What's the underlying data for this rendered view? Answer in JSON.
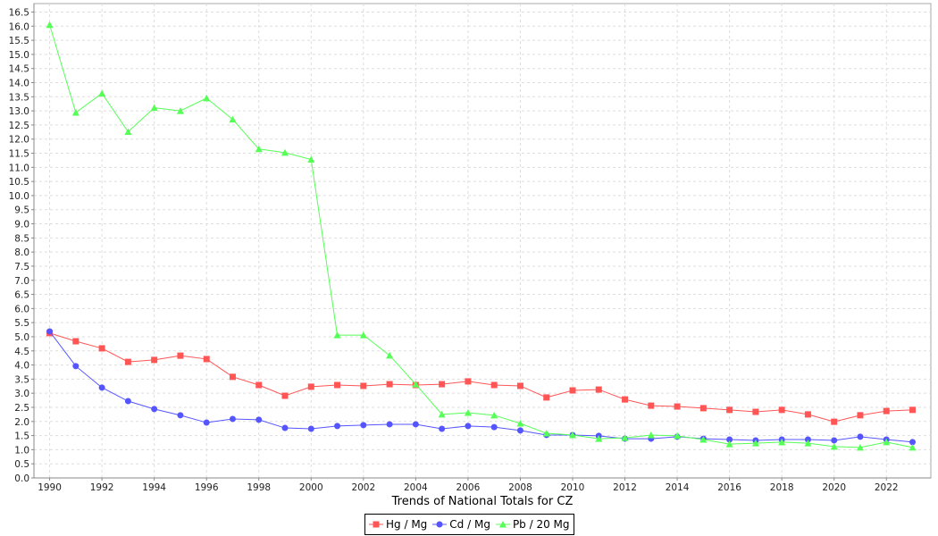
{
  "chart_data": {
    "type": "line",
    "title": "",
    "xlabel": "Trends of National Totals for CZ",
    "ylabel": "",
    "xlim": [
      1989.4,
      2023.7
    ],
    "ylim": [
      0,
      16.8
    ],
    "grid": true,
    "legend_position": "bottom",
    "y_ticks": [
      "0.0",
      "0.5",
      "1.0",
      "1.5",
      "2.0",
      "2.5",
      "3.0",
      "3.5",
      "4.0",
      "4.5",
      "5.0",
      "5.5",
      "6.0",
      "6.5",
      "7.0",
      "7.5",
      "8.0",
      "8.5",
      "9.0",
      "9.5",
      "10.0",
      "10.5",
      "11.0",
      "11.5",
      "12.0",
      "12.5",
      "13.0",
      "13.5",
      "14.0",
      "14.5",
      "15.0",
      "15.5",
      "16.0",
      "16.5"
    ],
    "x_ticks": [
      "1990",
      "1992",
      "1994",
      "1996",
      "1998",
      "2000",
      "2002",
      "2004",
      "2006",
      "2008",
      "2010",
      "2012",
      "2014",
      "2016",
      "2018",
      "2020",
      "2022"
    ],
    "x": [
      1990,
      1991,
      1992,
      1993,
      1994,
      1995,
      1996,
      1997,
      1998,
      1999,
      2000,
      2001,
      2002,
      2003,
      2004,
      2005,
      2006,
      2007,
      2008,
      2009,
      2010,
      2011,
      2012,
      2013,
      2014,
      2015,
      2016,
      2017,
      2018,
      2019,
      2020,
      2021,
      2022,
      2023
    ],
    "series": [
      {
        "name": "Hg / Mg",
        "color": "#ff5555",
        "marker": "square",
        "values": [
          5.13,
          4.84,
          4.59,
          4.11,
          4.18,
          4.33,
          4.21,
          3.58,
          3.29,
          2.91,
          3.23,
          3.29,
          3.26,
          3.32,
          3.29,
          3.32,
          3.42,
          3.29,
          3.26,
          2.85,
          3.1,
          3.13,
          2.78,
          2.56,
          2.53,
          2.47,
          2.41,
          2.34,
          2.41,
          2.25,
          1.99,
          2.22,
          2.37,
          2.41
        ]
      },
      {
        "name": "Cd / Mg",
        "color": "#5555ff",
        "marker": "circle",
        "values": [
          5.19,
          3.96,
          3.2,
          2.72,
          2.44,
          2.22,
          1.96,
          2.09,
          2.06,
          1.77,
          1.74,
          1.84,
          1.87,
          1.9,
          1.9,
          1.74,
          1.84,
          1.8,
          1.68,
          1.52,
          1.52,
          1.49,
          1.39,
          1.39,
          1.46,
          1.39,
          1.36,
          1.33,
          1.36,
          1.36,
          1.33,
          1.46,
          1.36,
          1.27
        ]
      },
      {
        "name": "Pb / 20 Mg",
        "color": "#55ff55",
        "marker": "triangle",
        "values": [
          16.05,
          12.94,
          13.62,
          12.26,
          13.11,
          13.0,
          13.45,
          12.7,
          11.65,
          11.52,
          11.28,
          5.06,
          5.06,
          4.34,
          3.32,
          2.25,
          2.31,
          2.22,
          1.93,
          1.58,
          1.52,
          1.39,
          1.42,
          1.52,
          1.49,
          1.36,
          1.2,
          1.23,
          1.27,
          1.23,
          1.11,
          1.08,
          1.27,
          1.08
        ]
      }
    ]
  }
}
